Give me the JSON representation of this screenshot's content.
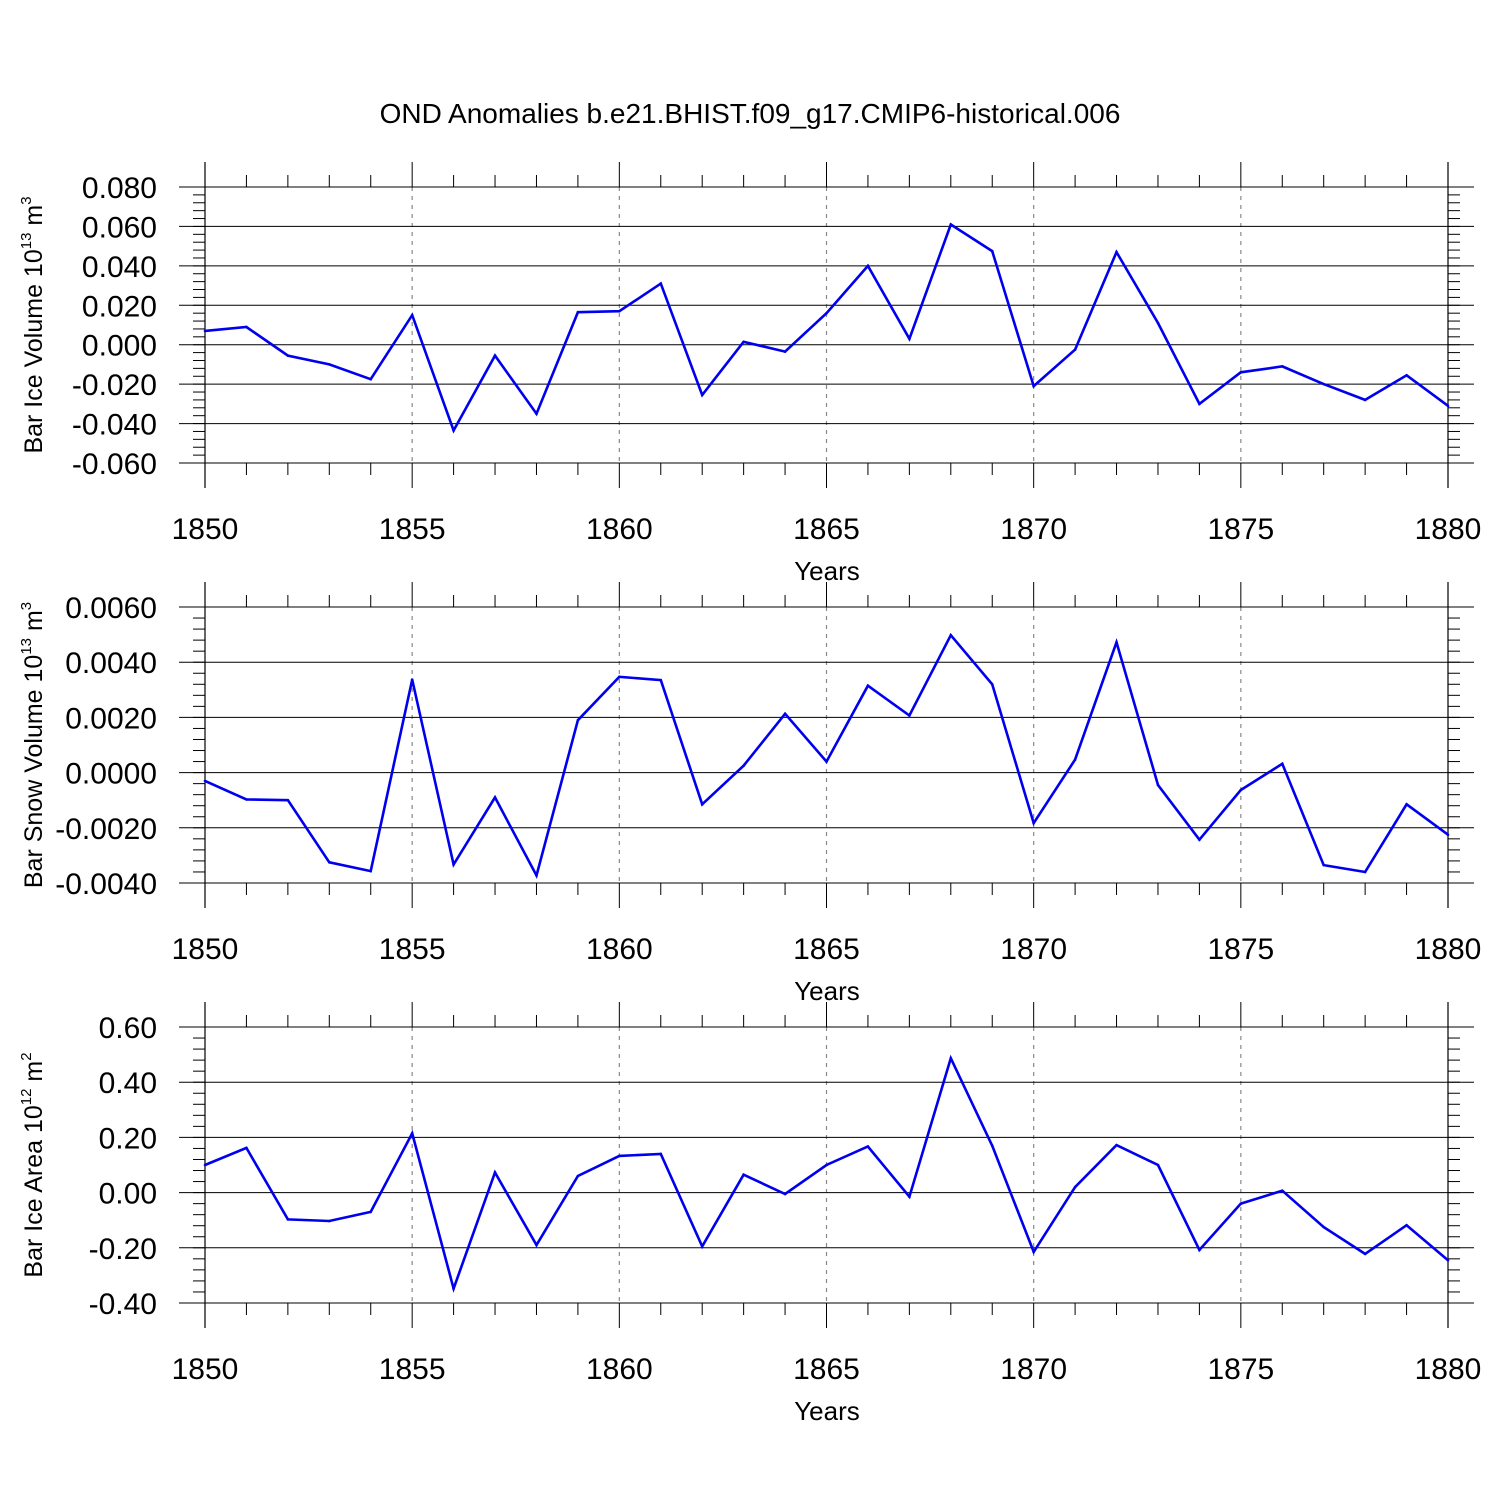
{
  "figure": {
    "title": "OND Anomalies b.e21.BHIST.f09_g17.CMIP6-historical.006",
    "line_color": "#0000ee"
  },
  "chart_data": [
    {
      "type": "line",
      "xlabel": "Years",
      "ylabel_main": "Bar Ice Volume 10",
      "ylabel_exp": "13",
      "ylabel_unit": " m",
      "ylabel_unit_exp": "3",
      "xlim": [
        1850,
        1880
      ],
      "ylim": [
        -0.06,
        0.08
      ],
      "yticks": [
        -0.06,
        -0.04,
        -0.02,
        0.0,
        0.02,
        0.04,
        0.06,
        0.08
      ],
      "ytick_labels": [
        "-0.060",
        "-0.040",
        "-0.020",
        "0.000",
        "0.020",
        "0.040",
        "0.060",
        "0.080"
      ],
      "yminor_step": 0.004,
      "xticks": [
        1850,
        1855,
        1860,
        1865,
        1870,
        1875,
        1880
      ],
      "xtick_labels": [
        "1850",
        "1855",
        "1860",
        "1865",
        "1870",
        "1875",
        "1880"
      ],
      "x": [
        1850,
        1851,
        1852,
        1853,
        1854,
        1855,
        1856,
        1857,
        1858,
        1859,
        1860,
        1861,
        1862,
        1863,
        1864,
        1865,
        1866,
        1867,
        1868,
        1869,
        1870,
        1871,
        1872,
        1873,
        1874,
        1875,
        1876,
        1877,
        1878,
        1879,
        1880
      ],
      "values": [
        0.007,
        0.009,
        -0.0055,
        -0.01,
        -0.0175,
        0.015,
        -0.0435,
        -0.0055,
        -0.035,
        0.0165,
        0.017,
        0.031,
        -0.0255,
        0.0015,
        -0.0035,
        0.016,
        0.04,
        0.003,
        0.061,
        0.0475,
        -0.021,
        -0.0025,
        0.047,
        0.011,
        -0.03,
        -0.014,
        -0.011,
        -0.02,
        -0.028,
        -0.0155,
        -0.031
      ]
    },
    {
      "type": "line",
      "xlabel": "Years",
      "ylabel_main": "Bar Snow Volume 10",
      "ylabel_exp": "13",
      "ylabel_unit": " m",
      "ylabel_unit_exp": "3",
      "xlim": [
        1850,
        1880
      ],
      "ylim": [
        -0.004,
        0.006
      ],
      "yticks": [
        -0.004,
        -0.002,
        0.0,
        0.002,
        0.004,
        0.006
      ],
      "ytick_labels": [
        "-0.0040",
        "-0.0020",
        "0.0000",
        "0.0020",
        "0.0040",
        "0.0060"
      ],
      "yminor_step": 0.0004,
      "xticks": [
        1850,
        1855,
        1860,
        1865,
        1870,
        1875,
        1880
      ],
      "xtick_labels": [
        "1850",
        "1855",
        "1860",
        "1865",
        "1870",
        "1875",
        "1880"
      ],
      "x": [
        1850,
        1851,
        1852,
        1853,
        1854,
        1855,
        1856,
        1857,
        1858,
        1859,
        1860,
        1861,
        1862,
        1863,
        1864,
        1865,
        1866,
        1867,
        1868,
        1869,
        1870,
        1871,
        1872,
        1873,
        1874,
        1875,
        1876,
        1877,
        1878,
        1879,
        1880
      ],
      "values": [
        -0.0003,
        -0.00097,
        -0.001,
        -0.00325,
        -0.00357,
        0.00337,
        -0.00333,
        -0.0009,
        -0.00373,
        0.0019,
        0.00347,
        0.00335,
        -0.00115,
        0.00025,
        0.00213,
        0.0004,
        0.00315,
        0.00207,
        0.00498,
        0.0032,
        -0.00183,
        0.00047,
        0.00472,
        -0.00045,
        -0.00243,
        -0.00063,
        0.00032,
        -0.00335,
        -0.0036,
        -0.00115,
        -0.00225
      ]
    },
    {
      "type": "line",
      "xlabel": "Years",
      "ylabel_main": "Bar Ice Area 10",
      "ylabel_exp": "12",
      "ylabel_unit": " m",
      "ylabel_unit_exp": "2",
      "xlim": [
        1850,
        1880
      ],
      "ylim": [
        -0.4,
        0.6
      ],
      "yticks": [
        -0.4,
        -0.2,
        0.0,
        0.2,
        0.4,
        0.6
      ],
      "ytick_labels": [
        "-0.40",
        "-0.20",
        "0.00",
        "0.20",
        "0.40",
        "0.60"
      ],
      "yminor_step": 0.04,
      "xticks": [
        1850,
        1855,
        1860,
        1865,
        1870,
        1875,
        1880
      ],
      "xtick_labels": [
        "1850",
        "1855",
        "1860",
        "1865",
        "1870",
        "1875",
        "1880"
      ],
      "x": [
        1850,
        1851,
        1852,
        1853,
        1854,
        1855,
        1856,
        1857,
        1858,
        1859,
        1860,
        1861,
        1862,
        1863,
        1864,
        1865,
        1866,
        1867,
        1868,
        1869,
        1870,
        1871,
        1872,
        1873,
        1874,
        1875,
        1876,
        1877,
        1878,
        1879,
        1880
      ],
      "values": [
        0.1,
        0.162,
        -0.097,
        -0.103,
        -0.07,
        0.215,
        -0.348,
        0.073,
        -0.19,
        0.06,
        0.133,
        0.14,
        -0.195,
        0.065,
        -0.005,
        0.1,
        0.167,
        -0.015,
        0.487,
        0.17,
        -0.215,
        0.02,
        0.172,
        0.1,
        -0.208,
        -0.04,
        0.007,
        -0.125,
        -0.222,
        -0.118,
        -0.245
      ]
    }
  ]
}
